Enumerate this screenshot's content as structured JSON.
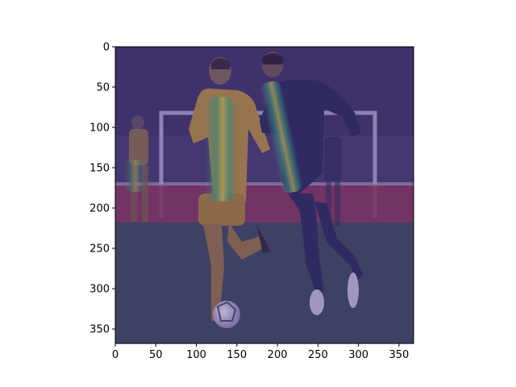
{
  "figure": {
    "background": "#ffffff",
    "axis_color": "#000000"
  },
  "image_axes": {
    "xlim": [
      0,
      368
    ],
    "ylim": [
      368,
      0
    ],
    "x_ticks": [
      0,
      50,
      100,
      150,
      200,
      250,
      300,
      350
    ],
    "y_ticks": [
      0,
      50,
      100,
      150,
      200,
      250,
      300,
      350
    ]
  },
  "scene": {
    "description_colors": {
      "overlay_tint": "#3b2a7a",
      "jersey_left": "#c99a3a",
      "jersey_right": "#2a2a55",
      "pitch": "#3f5a4a",
      "crowd": "#4a3e6a",
      "banner": "#9a3a55",
      "heat_high": "#f0e040",
      "heat_mid": "#3fb87a"
    },
    "icons": [
      "football-icon"
    ]
  }
}
